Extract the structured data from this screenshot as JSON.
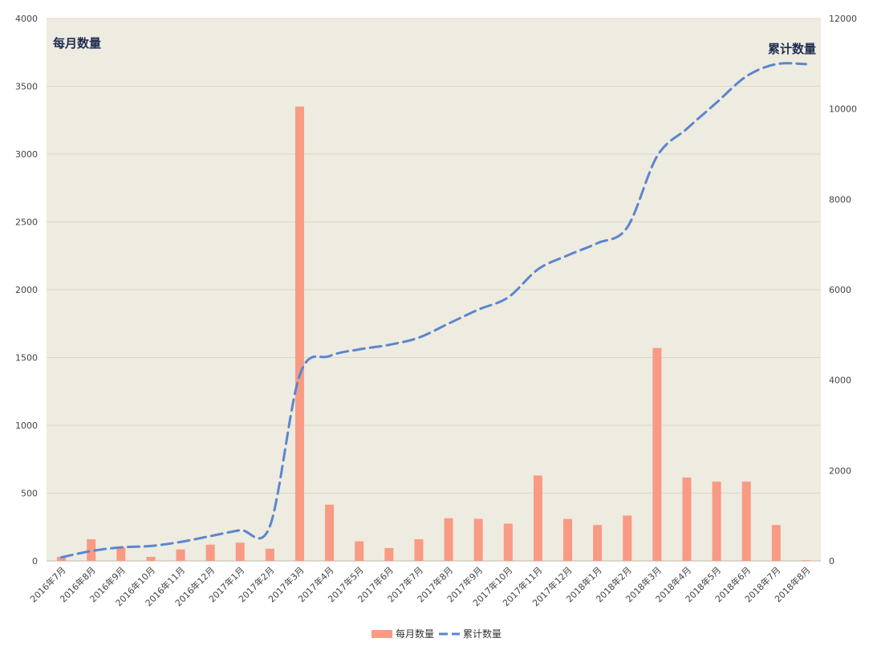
{
  "chart_data": {
    "type": "bar+line",
    "title": "",
    "categories": [
      "2016年7月",
      "2016年8月",
      "2016年9月",
      "2016年10月",
      "2016年11月",
      "2016年12月",
      "2017年1月",
      "2017年2月",
      "2017年3月",
      "2017年4月",
      "2017年5月",
      "2017年6月",
      "2017年7月",
      "2017年8月",
      "2017年9月",
      "2017年10月",
      "2017年11月",
      "2017年12月",
      "2018年1月",
      "2018年2月",
      "2018年3月",
      "2018年4月",
      "2018年5月",
      "2018年6月",
      "2018年7月",
      "2018年8月"
    ],
    "series": [
      {
        "name": "每月数量",
        "type": "bar",
        "axis": "left",
        "color": "#f99a84",
        "values": [
          30,
          160,
          100,
          30,
          85,
          120,
          135,
          90,
          3350,
          415,
          145,
          95,
          160,
          315,
          310,
          275,
          630,
          310,
          265,
          335,
          1570,
          615,
          585,
          585,
          265,
          5
        ]
      },
      {
        "name": "累计数量",
        "type": "line",
        "axis": "right",
        "color": "#5b86cf",
        "dashed": true,
        "values": [
          80,
          220,
          300,
          330,
          420,
          550,
          680,
          770,
          4110,
          4530,
          4680,
          4780,
          4940,
          5250,
          5560,
          5830,
          6450,
          6760,
          7030,
          7380,
          8950,
          9560,
          10140,
          10720,
          10990,
          10990
        ]
      }
    ],
    "y_left": {
      "label": "每月数量",
      "ylim": [
        0,
        4000
      ],
      "ticks": [
        0,
        500,
        1000,
        1500,
        2000,
        2500,
        3000,
        3500,
        4000
      ]
    },
    "y_right": {
      "label": "累计数量",
      "ylim": [
        0,
        12000
      ],
      "ticks": [
        0,
        2000,
        4000,
        6000,
        8000,
        10000,
        12000
      ]
    },
    "grid": true,
    "legend_position": "bottom-center",
    "plot_background": "#eeebe0"
  }
}
